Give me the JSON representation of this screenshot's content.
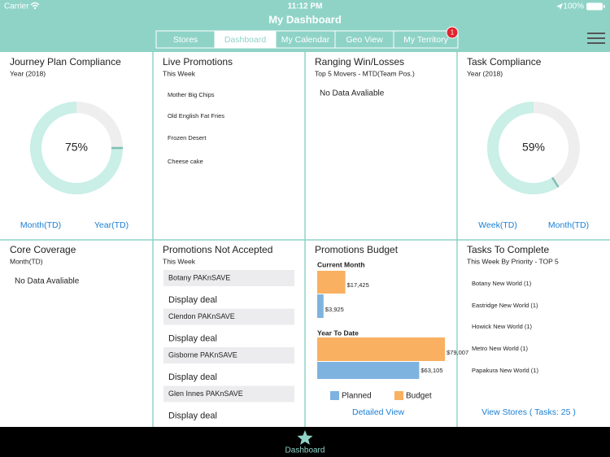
{
  "status_bar": {
    "carrier": "Carrier",
    "time": "11:12 PM",
    "battery": "100%"
  },
  "header": {
    "title": "My Dashboard",
    "tabs": [
      "Stores",
      "Dashboard",
      "My Calendar",
      "Geo View",
      "My Territory"
    ],
    "selected_tab": 1,
    "badge": 1
  },
  "panels": [
    {
      "title": "Journey Plan Compliance",
      "subtitle": "Year (2018)",
      "donut": {
        "value": 75,
        "label": "75%"
      },
      "links": [
        "Month(TD)",
        "Year(TD)"
      ]
    },
    {
      "title": "Live Promotions",
      "subtitle": "This Week",
      "items": [
        "Mother Big Chips",
        "Old English Fat Fries",
        "Frozen Desert",
        "Cheese cake"
      ]
    },
    {
      "title": "Ranging Win/Losses",
      "subtitle": "Top 5 Movers - MTD(Team Pos.)",
      "message": "No Data Avaliable"
    },
    {
      "title": "Task Compliance",
      "subtitle": "Year (2018)",
      "donut": {
        "value": 59,
        "label": "59%"
      },
      "links": [
        "Week(TD)",
        "Month(TD)"
      ]
    },
    {
      "title": "Core Coverage",
      "subtitle": "Month(TD)",
      "message": "No Data Avaliable"
    },
    {
      "title": "Promotions Not Accepted",
      "subtitle": "This Week",
      "rows": [
        {
          "store": "Botany PAKnSAVE",
          "deal": "Display deal"
        },
        {
          "store": "Clendon PAKnSAVE",
          "deal": "Display deal"
        },
        {
          "store": "Gisborne PAKnSAVE",
          "deal": "Display deal"
        },
        {
          "store": "Glen Innes PAKnSAVE",
          "deal": "Display deal"
        }
      ]
    },
    {
      "title": "Promotions Budget",
      "groups": [
        "Current Month",
        "Year To Date"
      ],
      "series": [
        {
          "name": "Planned",
          "color": "#7fb3df",
          "values": [
            3925,
            63105
          ],
          "value_labels": [
            "$3,925",
            "$63,105"
          ]
        },
        {
          "name": "Budget",
          "color": "#f9b061",
          "values": [
            17425,
            79007
          ],
          "value_labels": [
            "$17,425",
            "$79,007"
          ]
        }
      ],
      "link": "Detailed View"
    },
    {
      "title": "Tasks To Complete",
      "subtitle": "This Week By Priority - TOP 5",
      "items": [
        "Botany New World (1)",
        "Eastridge New World (1)",
        "Howick New World (1)",
        "Metro New World (1)",
        "Papakura New World (1)"
      ],
      "link": "View Stores ( Tasks: 25 )"
    }
  ],
  "tab_bar": {
    "label": "Dashboard"
  }
}
